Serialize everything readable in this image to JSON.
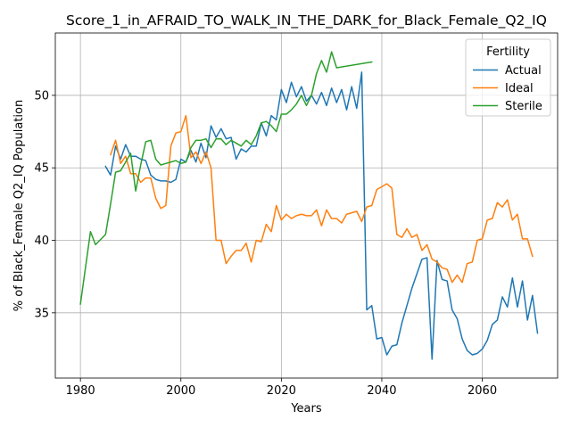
{
  "chart_data": {
    "type": "line",
    "title": "Score_1_in_AFRAID_TO_WALK_IN_THE_DARK_for_Black_Female_Q2_IQ",
    "xlabel": "Years",
    "ylabel": "% of Black_Female Q2_IQ Population",
    "xlim": [
      1975,
      2075
    ],
    "ylim": [
      30.5,
      54.3
    ],
    "x_ticks": [
      1980,
      2000,
      2020,
      2040,
      2060
    ],
    "y_ticks": [
      35,
      40,
      45,
      50
    ],
    "grid": true,
    "legend": {
      "title": "Fertility",
      "placement": "top-right"
    },
    "series": [
      {
        "name": "Actual",
        "color": "#1f77b4",
        "points": [
          [
            1985,
            45.1
          ],
          [
            1986,
            44.5
          ],
          [
            1987,
            46.5
          ],
          [
            1988,
            45.6
          ],
          [
            1989,
            46.6
          ],
          [
            1990,
            45.8
          ],
          [
            1991,
            45.8
          ],
          [
            1992,
            45.6
          ],
          [
            1993,
            45.5
          ],
          [
            1994,
            44.5
          ],
          [
            1995,
            44.2
          ],
          [
            1996,
            44.1
          ],
          [
            1997,
            44.1
          ],
          [
            1998,
            44.0
          ],
          [
            1999,
            44.2
          ],
          [
            2000,
            45.6
          ],
          [
            2001,
            45.4
          ],
          [
            2002,
            46.2
          ],
          [
            2003,
            45.4
          ],
          [
            2004,
            46.7
          ],
          [
            2005,
            45.7
          ],
          [
            2006,
            47.9
          ],
          [
            2007,
            47.1
          ],
          [
            2008,
            47.7
          ],
          [
            2009,
            47.0
          ],
          [
            2010,
            47.1
          ],
          [
            2011,
            45.6
          ],
          [
            2012,
            46.3
          ],
          [
            2013,
            46.1
          ],
          [
            2014,
            46.5
          ],
          [
            2015,
            46.5
          ],
          [
            2016,
            48.1
          ],
          [
            2017,
            47.2
          ],
          [
            2018,
            48.6
          ],
          [
            2019,
            48.3
          ],
          [
            2020,
            50.4
          ],
          [
            2021,
            49.5
          ],
          [
            2022,
            50.9
          ],
          [
            2023,
            49.9
          ],
          [
            2024,
            50.6
          ],
          [
            2025,
            49.6
          ],
          [
            2026,
            50.0
          ],
          [
            2027,
            49.4
          ],
          [
            2028,
            50.2
          ],
          [
            2029,
            49.3
          ],
          [
            2030,
            50.5
          ],
          [
            2031,
            49.5
          ],
          [
            2032,
            50.4
          ],
          [
            2033,
            49.0
          ],
          [
            2034,
            50.6
          ],
          [
            2035,
            49.1
          ],
          [
            2036,
            51.6
          ],
          [
            2037,
            35.2
          ],
          [
            2038,
            35.5
          ],
          [
            2039,
            33.2
          ],
          [
            2040,
            33.3
          ],
          [
            2041,
            32.1
          ],
          [
            2042,
            32.7
          ],
          [
            2043,
            32.8
          ],
          [
            2044,
            34.3
          ],
          [
            2045,
            35.5
          ],
          [
            2046,
            36.7
          ],
          [
            2047,
            37.7
          ],
          [
            2048,
            38.7
          ],
          [
            2049,
            38.8
          ],
          [
            2050,
            31.8
          ],
          [
            2051,
            38.6
          ],
          [
            2052,
            37.3
          ],
          [
            2053,
            37.2
          ],
          [
            2054,
            35.2
          ],
          [
            2055,
            34.6
          ],
          [
            2056,
            33.2
          ],
          [
            2057,
            32.4
          ],
          [
            2058,
            32.1
          ],
          [
            2059,
            32.2
          ],
          [
            2060,
            32.5
          ],
          [
            2061,
            33.1
          ],
          [
            2062,
            34.2
          ],
          [
            2063,
            34.5
          ],
          [
            2064,
            36.1
          ],
          [
            2065,
            35.4
          ],
          [
            2066,
            37.4
          ],
          [
            2067,
            35.4
          ],
          [
            2068,
            37.2
          ],
          [
            2069,
            34.5
          ],
          [
            2070,
            36.2
          ],
          [
            2071,
            33.6
          ]
        ]
      },
      {
        "name": "Ideal",
        "color": "#ff7f0e",
        "points": [
          [
            1986,
            45.9
          ],
          [
            1987,
            46.9
          ],
          [
            1988,
            45.3
          ],
          [
            1989,
            45.8
          ],
          [
            1990,
            44.6
          ],
          [
            1991,
            44.6
          ],
          [
            1992,
            44.0
          ],
          [
            1993,
            44.3
          ],
          [
            1994,
            44.3
          ],
          [
            1995,
            42.9
          ],
          [
            1996,
            42.2
          ],
          [
            1997,
            42.4
          ],
          [
            1998,
            46.5
          ],
          [
            1999,
            47.4
          ],
          [
            2000,
            47.5
          ],
          [
            2001,
            48.6
          ],
          [
            2002,
            45.7
          ],
          [
            2003,
            46.1
          ],
          [
            2004,
            45.3
          ],
          [
            2005,
            46.1
          ],
          [
            2006,
            45.0
          ],
          [
            2007,
            40.0
          ],
          [
            2008,
            40.0
          ],
          [
            2009,
            38.4
          ],
          [
            2010,
            38.9
          ],
          [
            2011,
            39.3
          ],
          [
            2012,
            39.3
          ],
          [
            2013,
            39.8
          ],
          [
            2014,
            38.5
          ],
          [
            2015,
            40.0
          ],
          [
            2016,
            39.9
          ],
          [
            2017,
            41.1
          ],
          [
            2018,
            40.6
          ],
          [
            2019,
            42.4
          ],
          [
            2020,
            41.4
          ],
          [
            2021,
            41.8
          ],
          [
            2022,
            41.5
          ],
          [
            2023,
            41.7
          ],
          [
            2024,
            41.8
          ],
          [
            2025,
            41.7
          ],
          [
            2026,
            41.7
          ],
          [
            2027,
            42.1
          ],
          [
            2028,
            41.0
          ],
          [
            2029,
            42.1
          ],
          [
            2030,
            41.5
          ],
          [
            2031,
            41.5
          ],
          [
            2032,
            41.2
          ],
          [
            2033,
            41.8
          ],
          [
            2034,
            41.9
          ],
          [
            2035,
            42.0
          ],
          [
            2036,
            41.3
          ],
          [
            2037,
            42.3
          ],
          [
            2038,
            42.4
          ],
          [
            2039,
            43.5
          ],
          [
            2040,
            43.7
          ],
          [
            2041,
            43.9
          ],
          [
            2042,
            43.6
          ],
          [
            2043,
            40.4
          ],
          [
            2044,
            40.2
          ],
          [
            2045,
            40.8
          ],
          [
            2046,
            40.2
          ],
          [
            2047,
            40.4
          ],
          [
            2048,
            39.3
          ],
          [
            2049,
            39.7
          ],
          [
            2050,
            38.7
          ],
          [
            2051,
            38.5
          ],
          [
            2052,
            38.1
          ],
          [
            2053,
            38.0
          ],
          [
            2054,
            37.1
          ],
          [
            2055,
            37.6
          ],
          [
            2056,
            37.1
          ],
          [
            2057,
            38.4
          ],
          [
            2058,
            38.5
          ],
          [
            2059,
            40.0
          ],
          [
            2060,
            40.1
          ],
          [
            2061,
            41.4
          ],
          [
            2062,
            41.5
          ],
          [
            2063,
            42.6
          ],
          [
            2064,
            42.3
          ],
          [
            2065,
            42.8
          ],
          [
            2066,
            41.4
          ],
          [
            2067,
            41.8
          ],
          [
            2068,
            40.1
          ],
          [
            2069,
            40.1
          ],
          [
            2070,
            38.9
          ]
        ]
      },
      {
        "name": "Sterile",
        "color": "#2ca02c",
        "points": [
          [
            1980,
            35.6
          ],
          [
            1982,
            40.6
          ],
          [
            1983,
            39.7
          ],
          [
            1985,
            40.4
          ],
          [
            1986,
            42.5
          ],
          [
            1987,
            44.7
          ],
          [
            1988,
            44.8
          ],
          [
            1989,
            45.4
          ],
          [
            1990,
            46.0
          ],
          [
            1991,
            43.4
          ],
          [
            1992,
            45.2
          ],
          [
            1993,
            46.8
          ],
          [
            1994,
            46.9
          ],
          [
            1995,
            45.6
          ],
          [
            1996,
            45.2
          ],
          [
            1997,
            45.3
          ],
          [
            1998,
            45.4
          ],
          [
            1999,
            45.5
          ],
          [
            2000,
            45.3
          ],
          [
            2001,
            45.4
          ],
          [
            2002,
            46.4
          ],
          [
            2003,
            46.9
          ],
          [
            2004,
            46.9
          ],
          [
            2005,
            47.0
          ],
          [
            2006,
            46.4
          ],
          [
            2007,
            47.0
          ],
          [
            2008,
            47.0
          ],
          [
            2009,
            46.6
          ],
          [
            2010,
            46.9
          ],
          [
            2011,
            46.7
          ],
          [
            2012,
            46.5
          ],
          [
            2013,
            46.9
          ],
          [
            2014,
            46.6
          ],
          [
            2015,
            47.2
          ],
          [
            2016,
            48.1
          ],
          [
            2017,
            48.2
          ],
          [
            2018,
            47.9
          ],
          [
            2019,
            47.5
          ],
          [
            2020,
            48.7
          ],
          [
            2021,
            48.7
          ],
          [
            2022,
            49.0
          ],
          [
            2023,
            49.4
          ],
          [
            2024,
            50.0
          ],
          [
            2025,
            49.3
          ],
          [
            2026,
            50.0
          ],
          [
            2027,
            51.5
          ],
          [
            2028,
            52.4
          ],
          [
            2029,
            51.6
          ],
          [
            2030,
            53.0
          ],
          [
            2031,
            51.9
          ],
          [
            2038,
            52.3
          ]
        ]
      }
    ]
  }
}
